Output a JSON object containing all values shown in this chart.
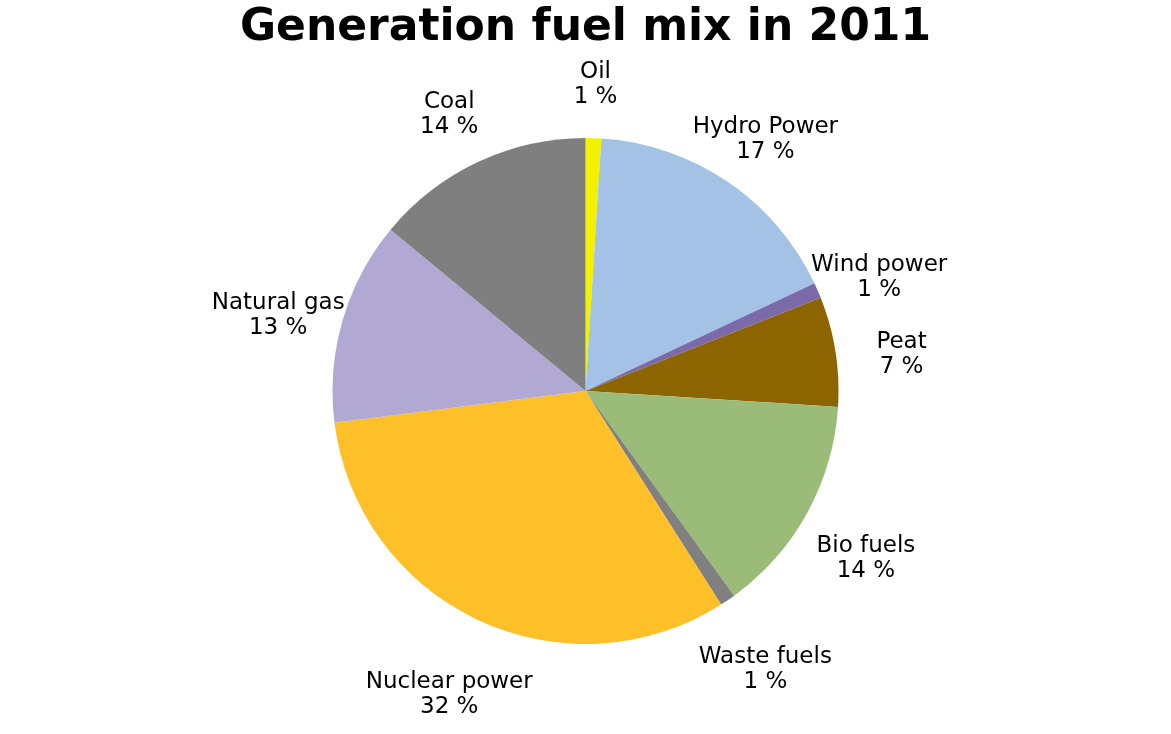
{
  "chart_data": {
    "type": "pie",
    "title": "Generation fuel mix in 2011",
    "categories": [
      "Oil",
      "Hydro Power",
      "Wind power",
      "Peat",
      "Bio fuels",
      "Waste fuels",
      "Nuclear power",
      "Natural gas",
      "Coal"
    ],
    "values": [
      1,
      17,
      1,
      7,
      14,
      1,
      32,
      13,
      14
    ],
    "value_labels": [
      "1 %",
      "17 %",
      "1 %",
      "7 %",
      "14 %",
      "1 %",
      "32 %",
      "13 %",
      "14 %"
    ],
    "colors": [
      "#f2f200",
      "#a4c2e6",
      "#7a6aaa",
      "#8c6400",
      "#9bbb78",
      "#808080",
      "#fdc029",
      "#b1a9d3",
      "#7f7f7f"
    ],
    "legend": false
  }
}
